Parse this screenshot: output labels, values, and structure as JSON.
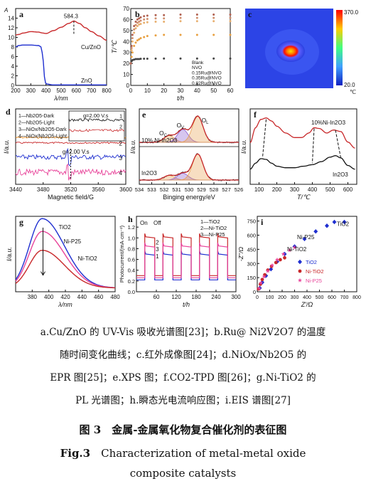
{
  "figure": {
    "caption_lines": [
      "a.Cu/ZnO 的 UV-Vis 吸收光谱图[23]；b.Ru@ Ni2V2O7 的温度",
      "随时间变化曲线；c.红外成像图[24]；d.NiOx/Nb2O5 的",
      "EPR 图[25]；e.XPS 图；f.CO2-TPD 图[26]；g.Ni-TiO2 的",
      "PL 光谱图；h.瞬态光电流响应图；i.EIS 谱图[27]"
    ],
    "title_zh": "图 3　金属-金属氧化物复合催化剂的表征图",
    "title_en_prefix": "Fig.3",
    "title_en_line1": "Characterization of metal-metal oxide",
    "title_en_line2": "composite catalysts"
  },
  "colors": {
    "red": "#c8282a",
    "blue": "#1f2fd0",
    "black": "#111111",
    "pink": "#e8449a",
    "orange": "#e88a20",
    "gray": "#888888"
  },
  "chart_data": [
    {
      "panel": "a",
      "type": "line",
      "xlabel": "λ/nm",
      "ylabel": "A",
      "xlim": [
        200,
        800
      ],
      "ylim": [
        0,
        16
      ],
      "xticks": [
        200,
        300,
        400,
        500,
        600,
        700,
        800
      ],
      "yticks": [
        0,
        2,
        4,
        6,
        8,
        10,
        12,
        14
      ],
      "annotations": [
        "584.3"
      ],
      "series": [
        {
          "name": "Cu/ZnO",
          "color": "red",
          "x": [
            200,
            220,
            250,
            300,
            350,
            380,
            400,
            450,
            500,
            550,
            584,
            620,
            660,
            700,
            750,
            800
          ],
          "y": [
            10.5,
            10.6,
            10.9,
            11.2,
            11.1,
            10.9,
            10.8,
            11.4,
            12.1,
            12.9,
            13.4,
            12.9,
            12.0,
            11.2,
            10.3,
            9.4
          ]
        },
        {
          "name": "ZnO",
          "color": "blue",
          "x": [
            200,
            220,
            250,
            300,
            350,
            370,
            380,
            390,
            400,
            450,
            500,
            600,
            700,
            800
          ],
          "y": [
            8.0,
            8.3,
            8.4,
            8.4,
            8.3,
            8.0,
            5.5,
            1.8,
            0.3,
            0.1,
            0.1,
            0.1,
            0.1,
            0.1
          ]
        }
      ]
    },
    {
      "panel": "b",
      "type": "scatter",
      "xlabel": "t/h",
      "ylabel": "T/℃",
      "xlim": [
        0,
        60
      ],
      "ylim": [
        0,
        70
      ],
      "xticks": [
        0,
        10,
        20,
        30,
        40,
        50,
        60
      ],
      "yticks": [
        0,
        10,
        20,
        30,
        40,
        50,
        60,
        70
      ],
      "series": [
        {
          "name": "Blank",
          "color": "black",
          "x": [
            0,
            0.5,
            1,
            2,
            3,
            4,
            5,
            6,
            8,
            10,
            15,
            20,
            30,
            40,
            50,
            60
          ],
          "y": [
            20,
            22,
            23,
            23.5,
            24,
            24,
            24,
            24.2,
            24.3,
            24.3,
            24.4,
            24.5,
            24.5,
            24.5,
            24.5,
            24.5
          ]
        },
        {
          "name": "NVO",
          "color": "orange",
          "x": [
            0,
            0.5,
            1,
            2,
            3,
            4,
            5,
            6,
            8,
            10,
            15,
            20,
            30,
            40,
            50,
            60
          ],
          "y": [
            20,
            26,
            30,
            36,
            39,
            41,
            42,
            43,
            44,
            45,
            45.5,
            46,
            46,
            46,
            46,
            46
          ]
        },
        {
          "name": "0.15Ru@NVO",
          "color": "orange",
          "x": [
            0,
            0.5,
            1,
            2,
            3,
            4,
            5,
            6,
            8,
            10,
            15,
            20,
            30,
            40,
            50,
            60
          ],
          "y": [
            20,
            32,
            40,
            48,
            52,
            54,
            55.5,
            56,
            57,
            57.5,
            58,
            58,
            58.5,
            58.5,
            58.5,
            58.5
          ]
        },
        {
          "name": "0.35Ru@NVO",
          "color": "orange",
          "x": [
            0,
            0.5,
            1,
            2,
            3,
            4,
            5,
            6,
            8,
            10,
            15,
            20,
            30,
            40,
            50,
            60
          ],
          "y": [
            20,
            34,
            43,
            51,
            55,
            57,
            58,
            59,
            60,
            60.5,
            61,
            61,
            61.5,
            61.5,
            61.5,
            61.5
          ]
        },
        {
          "name": "0.82Ru@NVO",
          "color": "orange",
          "x": [
            0,
            0.5,
            1,
            2,
            3,
            4,
            5,
            6,
            8,
            10,
            15,
            20,
            30,
            40,
            50,
            60
          ],
          "y": [
            20,
            36,
            46,
            54,
            58,
            60,
            61,
            62,
            63,
            63.5,
            64,
            64,
            64.5,
            64.5,
            64.5,
            64.5
          ]
        }
      ]
    },
    {
      "panel": "c",
      "type": "heatmap",
      "colorbar_max": "370.0",
      "colorbar_min": "20.0",
      "unit": "℃"
    },
    {
      "panel": "d",
      "type": "line",
      "xlabel": "Magnetic field/G",
      "ylabel": "I/a.u.",
      "xlim": [
        3440,
        3600
      ],
      "xticks": [
        3440,
        3480,
        3520,
        3560,
        3600
      ],
      "legend": [
        "1—Nb2O5-Dark",
        "2—Nb2O5-Light",
        "3—NiOx/Nb2O5-Dark",
        "4—NiOx/Nb2O5-Light"
      ],
      "annotations": [
        "g=2.00 V.s",
        "g=2.00 V.s",
        "1",
        "2",
        "3",
        "4"
      ],
      "inset": {
        "series": [
          {
            "name": "1",
            "color": "black",
            "baseline": 0.7
          },
          {
            "name": "2",
            "color": "red",
            "baseline": 0.35
          }
        ]
      },
      "series": [
        {
          "name": "1",
          "color": "orange",
          "baseline": 0.62,
          "noise": 0.01
        },
        {
          "name": "2",
          "color": "red",
          "baseline": 0.55,
          "noise": 0.01
        },
        {
          "name": "3",
          "color": "blue",
          "baseline": 0.36,
          "noise": 0.03
        },
        {
          "name": "4",
          "color": "pink",
          "baseline": 0.16,
          "noise": 0.04
        }
      ]
    },
    {
      "panel": "e",
      "type": "line",
      "xlabel": "Binging energy/eV",
      "ylabel": "I/a.u.",
      "xlim": [
        534,
        526
      ],
      "xticks": [
        534,
        533,
        532,
        531,
        530,
        529,
        528,
        527,
        526
      ],
      "annotations": [
        "OC",
        "OV",
        "OL",
        "10% Ni-In2O3",
        "In2O3"
      ],
      "subplots": [
        {
          "peaks": [
            {
              "name": "OC",
              "center": 531.6,
              "height": 0.22,
              "width": 0.6,
              "color": "#e8a050"
            },
            {
              "name": "OV",
              "center": 530.5,
              "height": 0.42,
              "width": 0.6,
              "color": "#8a5cd0"
            },
            {
              "name": "OL",
              "center": 529.3,
              "height": 0.85,
              "width": 0.6,
              "color": "#e8a050"
            }
          ]
        },
        {
          "peaks": [
            {
              "name": "OC",
              "center": 531.6,
              "height": 0.15,
              "width": 0.6,
              "color": "#e8a050"
            },
            {
              "name": "OV",
              "center": 530.5,
              "height": 0.22,
              "width": 0.6,
              "color": "#8a5cd0"
            },
            {
              "name": "OL",
              "center": 529.3,
              "height": 0.85,
              "width": 0.6,
              "color": "#e8a050"
            }
          ]
        }
      ]
    },
    {
      "panel": "f",
      "type": "line",
      "xlabel": "T/℃",
      "ylabel": "I/a.u.",
      "xlim": [
        50,
        650
      ],
      "xticks": [
        100,
        200,
        300,
        400,
        500,
        600
      ],
      "annotations": [
        "10%Ni-In2O3",
        "In2O3"
      ],
      "series": [
        {
          "name": "10%Ni-In2O3",
          "color": "red",
          "x": [
            50,
            80,
            110,
            140,
            170,
            200,
            250,
            300,
            340,
            380,
            410,
            440,
            480,
            520,
            560,
            600,
            640
          ],
          "y": [
            0.55,
            0.75,
            0.86,
            0.88,
            0.84,
            0.77,
            0.68,
            0.62,
            0.62,
            0.68,
            0.75,
            0.74,
            0.68,
            0.72,
            0.7,
            0.56,
            0.48
          ]
        },
        {
          "name": "In2O3",
          "color": "black",
          "x": [
            50,
            80,
            110,
            140,
            170,
            200,
            250,
            300,
            350,
            400,
            450,
            500,
            530,
            560,
            600,
            640
          ],
          "y": [
            0.2,
            0.28,
            0.34,
            0.33,
            0.28,
            0.24,
            0.22,
            0.22,
            0.24,
            0.26,
            0.3,
            0.36,
            0.38,
            0.35,
            0.25,
            0.2
          ]
        }
      ]
    },
    {
      "panel": "g",
      "type": "line",
      "xlabel": "λ/nm",
      "ylabel": "I/a.u.",
      "xlim": [
        360,
        480
      ],
      "xticks": [
        380,
        400,
        420,
        440,
        460,
        480
      ],
      "series": [
        {
          "name": "TiO2",
          "color": "blue",
          "peak": 392,
          "height": 0.92
        },
        {
          "name": "Ni-P25",
          "color": "pink",
          "peak": 392,
          "height": 0.75
        },
        {
          "name": "Ni-TiO2",
          "color": "red",
          "peak": 392,
          "height": 0.5
        }
      ]
    },
    {
      "panel": "h",
      "type": "line",
      "xlabel": "t/h",
      "ylabel": "Photocurrent/(mA·cm⁻²)",
      "xlim": [
        0,
        300
      ],
      "ylim": [
        0.0,
        1.4
      ],
      "xticks": [
        60,
        120,
        180,
        240,
        300
      ],
      "yticks": [
        0.0,
        0.2,
        0.4,
        0.6,
        0.8,
        1.0,
        1.2
      ],
      "annotations": [
        "On",
        "Off",
        "1",
        "2",
        "3"
      ],
      "legend": [
        "1—TiO2",
        "2—Ni-TiO2",
        "3—Ni-P25"
      ],
      "on_intervals": [
        [
          25,
          55
        ],
        [
          80,
          110
        ],
        [
          135,
          165
        ],
        [
          190,
          220
        ],
        [
          245,
          275
        ]
      ],
      "series": [
        {
          "name": "1",
          "color": "blue",
          "on": 0.7,
          "off": 0.22
        },
        {
          "name": "2",
          "color": "red",
          "on": 1.02,
          "off": 0.3
        },
        {
          "name": "3",
          "color": "pink",
          "on": 0.85,
          "off": 0.26
        }
      ]
    },
    {
      "panel": "i",
      "type": "scatter",
      "xlabel": "Z'/Ω",
      "ylabel": "-Z''/Ω",
      "xlim": [
        0,
        800
      ],
      "ylim": [
        0,
        800
      ],
      "xticks": [
        0,
        100,
        200,
        300,
        400,
        500,
        600,
        700,
        800
      ],
      "yticks": [
        0,
        150,
        300,
        450,
        600,
        750
      ],
      "annotations": [
        "TiO2",
        "Ni-P25",
        "Ni-TiO2"
      ],
      "legend": [
        "TiO2",
        "Ni-TiO2",
        "Ni-P25"
      ],
      "series": [
        {
          "name": "TiO2",
          "color": "blue",
          "marker": "diamond",
          "x": [
            20,
            40,
            70,
            110,
            160,
            220,
            300,
            380,
            470,
            560,
            620,
            700
          ],
          "y": [
            40,
            100,
            170,
            240,
            320,
            400,
            480,
            560,
            640,
            700,
            740,
            740
          ]
        },
        {
          "name": "Ni-TiO2",
          "color": "red",
          "marker": "circle",
          "x": [
            10,
            25,
            40,
            60,
            85,
            115,
            150,
            185,
            220
          ],
          "y": [
            30,
            80,
            130,
            180,
            230,
            270,
            310,
            340,
            360
          ]
        },
        {
          "name": "Ni-P25",
          "color": "pink",
          "marker": "star",
          "x": [
            15,
            30,
            55,
            85,
            120,
            160,
            210,
            260,
            300
          ],
          "y": [
            35,
            95,
            160,
            220,
            280,
            340,
            400,
            440,
            470
          ]
        }
      ]
    }
  ]
}
